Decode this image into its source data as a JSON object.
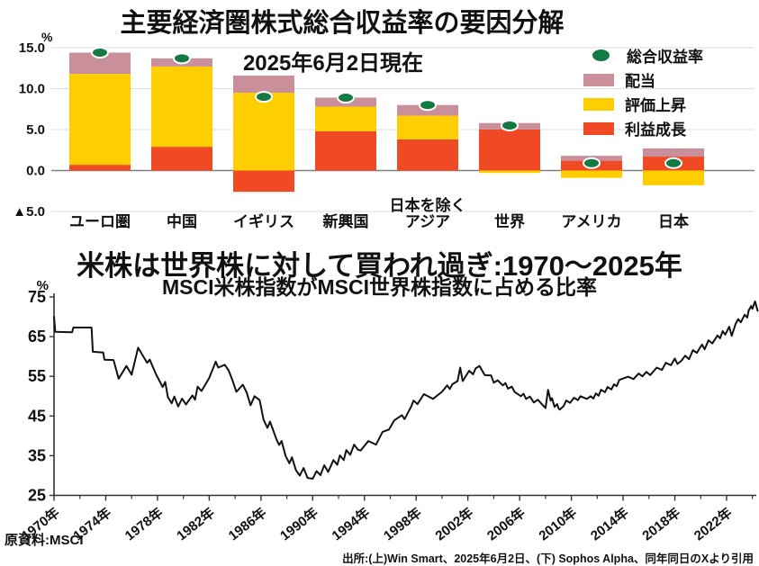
{
  "footer": {
    "left": "原資料:MSCI",
    "right": "出所:(上)Win Smart、2025年6月2日、(下) Sophos Alpha、同年同日のXより引用"
  },
  "chart_data": [
    {
      "type": "bar",
      "stacked": true,
      "title": "主要経済圏株式総合収益率の要因分解",
      "subtitle": "2025年6月2日現在",
      "unit": "%",
      "grid": true,
      "legend_position": "top-right",
      "ylim": [
        -5,
        15
      ],
      "yticks": [
        {
          "v": 15,
          "label": "15.0"
        },
        {
          "v": 10,
          "label": "10.0"
        },
        {
          "v": 5,
          "label": "5.0"
        },
        {
          "v": 0,
          "label": "0.0"
        },
        {
          "v": -5,
          "label": "▲5.0"
        }
      ],
      "categories": [
        "ユーロ圏",
        "中国",
        "イギリス",
        "新興国",
        "アジア",
        "世界",
        "アメリカ",
        "日本"
      ],
      "category_note": {
        "index": 4,
        "text": "日本を除く"
      },
      "series": [
        {
          "key": "growth",
          "name": "利益成長",
          "color": "#ef4a23",
          "values": [
            0.7,
            2.9,
            -2.6,
            4.8,
            3.8,
            5.0,
            1.2,
            1.7
          ]
        },
        {
          "key": "valuation",
          "name": "評価上昇",
          "color": "#ffce00",
          "values": [
            11.1,
            9.8,
            9.5,
            3.0,
            2.9,
            -0.3,
            -0.9,
            -1.8
          ]
        },
        {
          "key": "dividend",
          "name": "配当",
          "color": "#c9909c",
          "values": [
            2.6,
            1.0,
            2.1,
            1.1,
            1.3,
            0.8,
            0.6,
            1.0
          ]
        }
      ],
      "total_markers": {
        "key": "total",
        "name": "総合収益率",
        "color": "#137a42",
        "values": [
          14.4,
          13.7,
          9.0,
          8.9,
          8.0,
          5.5,
          0.9,
          0.9
        ]
      },
      "colors": {
        "grid": "#dcdcdc",
        "zero_axis": "#808080",
        "text": "#111111"
      }
    },
    {
      "type": "line",
      "title": "米株は世界株に対して買われ過ぎ:1970〜2025年",
      "subtitle": "MSCI米株指数がMSCI世界株指数に占める比率",
      "unit": "%",
      "line_color": "#111111",
      "xlim": [
        1969.8,
        2024.5
      ],
      "ylim": [
        25,
        75
      ],
      "yticks": [
        75,
        65,
        55,
        45,
        35,
        25
      ],
      "xticks": [
        {
          "year": 1970,
          "label": "1970年"
        },
        {
          "year": 1974,
          "label": "1974年"
        },
        {
          "year": 1978,
          "label": "1978年"
        },
        {
          "year": 1982,
          "label": "1982年"
        },
        {
          "year": 1986,
          "label": "1986年"
        },
        {
          "year": 1990,
          "label": "1990年"
        },
        {
          "year": 1994,
          "label": "1994年"
        },
        {
          "year": 1998,
          "label": "1998年"
        },
        {
          "year": 2002,
          "label": "2002年"
        },
        {
          "year": 2006,
          "label": "2006年"
        },
        {
          "year": 2010,
          "label": "2010年"
        },
        {
          "year": 2014,
          "label": "2014年"
        },
        {
          "year": 2018,
          "label": "2018年"
        },
        {
          "year": 2022,
          "label": "2022年"
        }
      ],
      "minor_tick_years": [
        1972,
        1976,
        1980,
        1984,
        1988,
        1992,
        1996,
        2000,
        2004,
        2008,
        2012,
        2016,
        2020,
        2024
      ],
      "points": [
        [
          1970.0,
          70.0
        ],
        [
          1970.1,
          66.2
        ],
        [
          1971.4,
          66.1
        ],
        [
          1971.5,
          67.3
        ],
        [
          1972.9,
          67.3
        ],
        [
          1973.0,
          61.2
        ],
        [
          1973.8,
          61.0
        ],
        [
          1973.9,
          59.2
        ],
        [
          1974.6,
          59.1
        ],
        [
          1975.0,
          54.4
        ],
        [
          1975.6,
          57.6
        ],
        [
          1976.0,
          55.4
        ],
        [
          1976.5,
          62.2
        ],
        [
          1977.2,
          58.4
        ],
        [
          1977.4,
          59.2
        ],
        [
          1977.9,
          55.4
        ],
        [
          1978.4,
          52.3
        ],
        [
          1978.6,
          53.6
        ],
        [
          1978.8,
          49.8
        ],
        [
          1979.1,
          48.2
        ],
        [
          1979.3,
          49.9
        ],
        [
          1979.6,
          47.4
        ],
        [
          1979.9,
          49.4
        ],
        [
          1980.2,
          47.9
        ],
        [
          1980.7,
          50.2
        ],
        [
          1980.9,
          49.1
        ],
        [
          1981.1,
          52.4
        ],
        [
          1981.4,
          51.3
        ],
        [
          1982.0,
          54.6
        ],
        [
          1982.5,
          58.7
        ],
        [
          1982.7,
          57.2
        ],
        [
          1983.2,
          57.9
        ],
        [
          1983.5,
          56.5
        ],
        [
          1983.8,
          54.0
        ],
        [
          1984.1,
          51.1
        ],
        [
          1984.6,
          52.9
        ],
        [
          1984.9,
          50.9
        ],
        [
          1985.2,
          47.7
        ],
        [
          1985.5,
          50.0
        ],
        [
          1985.9,
          49.0
        ],
        [
          1986.2,
          44.1
        ],
        [
          1986.5,
          42.0
        ],
        [
          1986.7,
          43.6
        ],
        [
          1987.2,
          39.1
        ],
        [
          1987.4,
          37.7
        ],
        [
          1987.6,
          38.7
        ],
        [
          1987.9,
          35.0
        ],
        [
          1988.2,
          33.1
        ],
        [
          1988.4,
          34.6
        ],
        [
          1988.7,
          31.4
        ],
        [
          1989.0,
          30.0
        ],
        [
          1989.3,
          31.9
        ],
        [
          1989.6,
          29.4
        ],
        [
          1990.0,
          29.2
        ],
        [
          1990.3,
          31.1
        ],
        [
          1990.6,
          30.1
        ],
        [
          1990.9,
          32.6
        ],
        [
          1991.2,
          30.9
        ],
        [
          1991.6,
          33.9
        ],
        [
          1991.9,
          32.7
        ],
        [
          1992.1,
          35.1
        ],
        [
          1992.4,
          33.9
        ],
        [
          1992.6,
          36.4
        ],
        [
          1992.9,
          35.2
        ],
        [
          1993.2,
          37.8
        ],
        [
          1993.5,
          36.5
        ],
        [
          1993.7,
          36.3
        ],
        [
          1994.3,
          38.7
        ],
        [
          1994.9,
          37.8
        ],
        [
          1995.4,
          41.0
        ],
        [
          1995.9,
          41.6
        ],
        [
          1996.3,
          43.9
        ],
        [
          1996.9,
          45.2
        ],
        [
          1997.1,
          44.2
        ],
        [
          1997.6,
          47.3
        ],
        [
          1997.8,
          48.9
        ],
        [
          1998.1,
          48.0
        ],
        [
          1998.6,
          50.5
        ],
        [
          1999.3,
          49.3
        ],
        [
          2000.0,
          51.1
        ],
        [
          2000.4,
          52.7
        ],
        [
          2000.6,
          51.8
        ],
        [
          2000.8,
          53.0
        ],
        [
          2001.2,
          53.8
        ],
        [
          2001.4,
          57.2
        ],
        [
          2001.6,
          53.8
        ],
        [
          2002.1,
          56.4
        ],
        [
          2002.4,
          55.5
        ],
        [
          2002.6,
          57.0
        ],
        [
          2002.9,
          57.6
        ],
        [
          2003.3,
          55.3
        ],
        [
          2003.8,
          55.2
        ],
        [
          2004.0,
          53.4
        ],
        [
          2004.3,
          54.0
        ],
        [
          2004.7,
          52.7
        ],
        [
          2004.9,
          53.3
        ],
        [
          2005.1,
          51.9
        ],
        [
          2005.4,
          52.4
        ],
        [
          2005.6,
          51.1
        ],
        [
          2006.1,
          50.0
        ],
        [
          2006.3,
          50.6
        ],
        [
          2006.5,
          49.3
        ],
        [
          2006.8,
          49.9
        ],
        [
          2007.1,
          48.4
        ],
        [
          2007.4,
          49.1
        ],
        [
          2007.8,
          47.7
        ],
        [
          2008.0,
          47.0
        ],
        [
          2008.2,
          51.6
        ],
        [
          2008.4,
          48.9
        ],
        [
          2008.5,
          49.5
        ],
        [
          2008.7,
          47.3
        ],
        [
          2008.9,
          48.0
        ],
        [
          2009.0,
          47.0
        ],
        [
          2009.1,
          46.6
        ],
        [
          2009.4,
          47.5
        ],
        [
          2009.6,
          48.9
        ],
        [
          2009.9,
          48.3
        ],
        [
          2010.2,
          49.6
        ],
        [
          2010.5,
          49.0
        ],
        [
          2010.7,
          50.0
        ],
        [
          2011.2,
          49.3
        ],
        [
          2011.5,
          50.0
        ],
        [
          2011.7,
          49.4
        ],
        [
          2011.9,
          50.7
        ],
        [
          2012.1,
          50.1
        ],
        [
          2012.3,
          51.6
        ],
        [
          2012.6,
          51.0
        ],
        [
          2012.8,
          52.3
        ],
        [
          2013.1,
          51.7
        ],
        [
          2013.3,
          53.0
        ],
        [
          2013.5,
          52.5
        ],
        [
          2013.7,
          54.1
        ],
        [
          2014.4,
          54.9
        ],
        [
          2014.8,
          54.3
        ],
        [
          2015.2,
          55.7
        ],
        [
          2015.5,
          55.0
        ],
        [
          2015.8,
          56.1
        ],
        [
          2016.1,
          55.3
        ],
        [
          2016.6,
          57.2
        ],
        [
          2017.0,
          56.6
        ],
        [
          2017.3,
          58.4
        ],
        [
          2017.7,
          57.8
        ],
        [
          2018.0,
          59.5
        ],
        [
          2018.2,
          58.1
        ],
        [
          2018.5,
          58.9
        ],
        [
          2018.8,
          60.2
        ],
        [
          2019.1,
          59.3
        ],
        [
          2019.4,
          61.6
        ],
        [
          2019.7,
          60.9
        ],
        [
          2020.1,
          63.0
        ],
        [
          2020.3,
          61.8
        ],
        [
          2020.6,
          64.1
        ],
        [
          2020.9,
          63.3
        ],
        [
          2021.3,
          65.3
        ],
        [
          2021.5,
          64.6
        ],
        [
          2021.7,
          66.4
        ],
        [
          2021.9,
          65.5
        ],
        [
          2022.2,
          67.5
        ],
        [
          2022.4,
          65.2
        ],
        [
          2022.7,
          68.2
        ],
        [
          2022.9,
          69.4
        ],
        [
          2023.1,
          68.6
        ],
        [
          2023.4,
          70.5
        ],
        [
          2023.6,
          69.8
        ],
        [
          2023.7,
          71.5
        ],
        [
          2023.9,
          72.7
        ],
        [
          2024.0,
          72.0
        ],
        [
          2024.2,
          73.9
        ],
        [
          2024.4,
          71.5
        ]
      ],
      "colors": {
        "axis": "#333333",
        "text": "#111111"
      }
    }
  ]
}
